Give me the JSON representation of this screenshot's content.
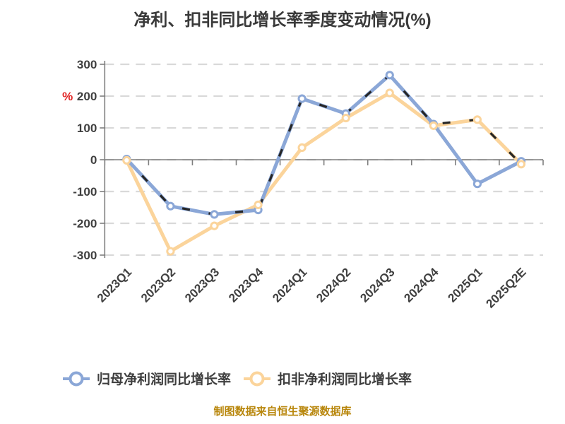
{
  "title": "净利、扣非同比增长率季度变动情况(%)",
  "y_unit_label": "%",
  "footer": "制图数据来自恒生聚源数据库",
  "colors": {
    "title_text": "#3a3a3a",
    "axis_line": "#7f7f7f",
    "gridline": "#d9d9d9",
    "tick_label": "#3f3f3f",
    "unit_label_red": "#e02020",
    "series_parent": "#8BA7D7",
    "series_nongaap": "#FBD49B",
    "overlay_dash": "#262626",
    "footer_text": "#b8860b",
    "marker_fill": "#ffffff"
  },
  "legend": {
    "items": [
      {
        "label": "归母净利润同比增长率",
        "color": "#8BA7D7"
      },
      {
        "label": "扣非净利润同比增长率",
        "color": "#FBD49B"
      }
    ]
  },
  "chart_data": {
    "type": "line",
    "title": "净利、扣非同比增长率季度变动情况(%)",
    "xlabel": "",
    "ylabel": "%",
    "categories": [
      "2023Q1",
      "2023Q2",
      "2023Q3",
      "2023Q4",
      "2024Q1",
      "2024Q2",
      "2024Q3",
      "2024Q4",
      "2025Q1",
      "2025Q2E"
    ],
    "series": [
      {
        "name": "归母净利润同比增长率",
        "color": "#8BA7D7",
        "marker": "circle",
        "values": [
          2,
          -146,
          -172,
          -158,
          192,
          145,
          266,
          112,
          -76,
          -5
        ]
      },
      {
        "name": "扣非净利润同比增长率",
        "color": "#FBD49B",
        "marker": "circle",
        "values": [
          -2,
          -288,
          -208,
          -142,
          38,
          131,
          210,
          107,
          126,
          -14
        ]
      }
    ],
    "overlay_dashed": {
      "name": "unlabeled-dashed-overlay",
      "color": "#262626",
      "values": [
        2,
        -146,
        -172,
        -158,
        192,
        145,
        266,
        112,
        126,
        -14
      ]
    },
    "ylim": [
      -300,
      300
    ],
    "yticks": [
      300,
      200,
      100,
      0,
      -100,
      -200,
      -300
    ],
    "grid": "horizontal-dashed",
    "legend_position": "bottom"
  }
}
